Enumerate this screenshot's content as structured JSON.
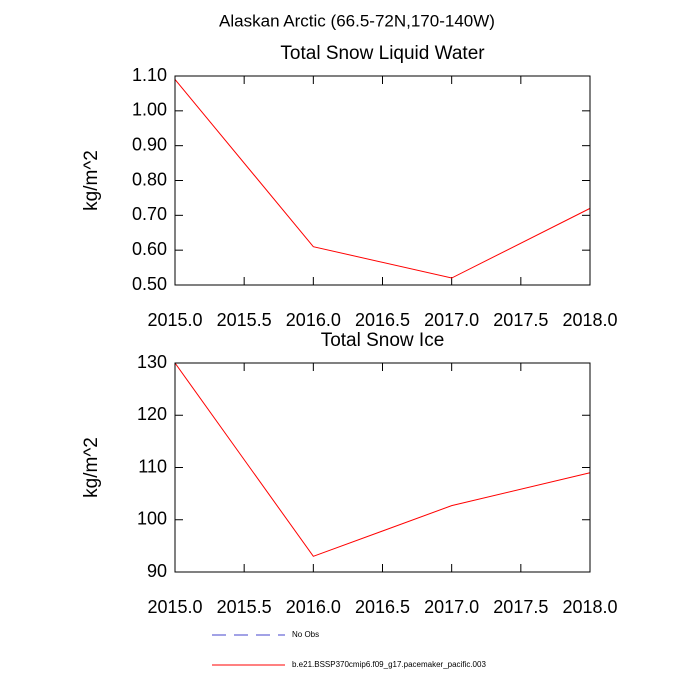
{
  "title": "Alaskan Arctic (66.5-72N,170-140W)",
  "chart_data": [
    {
      "type": "line",
      "title": "Total Snow Liquid Water",
      "ylabel": "kg/m^2",
      "x": [
        2015,
        2016,
        2017,
        2018
      ],
      "series": [
        {
          "color": "#ff0000",
          "values": [
            1.09,
            0.61,
            0.52,
            0.72
          ]
        }
      ],
      "xlim": [
        2015,
        2018
      ],
      "xticks": [
        {
          "value": 2015,
          "label": "2015.0"
        },
        {
          "value": 2015.5,
          "label": "2015.5"
        },
        {
          "value": 2016,
          "label": "2016.0"
        },
        {
          "value": 2016.5,
          "label": "2016.5"
        },
        {
          "value": 2017,
          "label": "2017.0"
        },
        {
          "value": 2017.5,
          "label": "2017.5"
        },
        {
          "value": 2018,
          "label": "2018.0"
        }
      ],
      "ylim": [
        0.5,
        1.1
      ],
      "yticks": [
        {
          "value": 0.5,
          "label": "0.50"
        },
        {
          "value": 0.6,
          "label": "0.60"
        },
        {
          "value": 0.7,
          "label": "0.70"
        },
        {
          "value": 0.8,
          "label": "0.80"
        },
        {
          "value": 0.9,
          "label": "0.90"
        },
        {
          "value": 1.0,
          "label": "1.00"
        },
        {
          "value": 1.1,
          "label": "1.10"
        }
      ]
    },
    {
      "type": "line",
      "title": "Total Snow Ice",
      "ylabel": "kg/m^2",
      "x": [
        2015,
        2016,
        2017,
        2018
      ],
      "series": [
        {
          "color": "#ff0000",
          "values": [
            130,
            93,
            102.7,
            109
          ]
        }
      ],
      "xlim": [
        2015,
        2018
      ],
      "xticks": [
        {
          "value": 2015,
          "label": "2015.0"
        },
        {
          "value": 2015.5,
          "label": "2015.5"
        },
        {
          "value": 2016,
          "label": "2016.0"
        },
        {
          "value": 2016.5,
          "label": "2016.5"
        },
        {
          "value": 2017,
          "label": "2017.0"
        },
        {
          "value": 2017.5,
          "label": "2017.5"
        },
        {
          "value": 2018,
          "label": "2018.0"
        }
      ],
      "ylim": [
        90,
        130
      ],
      "yticks": [
        90,
        100,
        110,
        120,
        130
      ]
    }
  ],
  "legend": [
    {
      "name": "No Obs",
      "color": "#4444cc",
      "dashed": true
    },
    {
      "name": "b.e21.BSSP370cmip6.f09_g17.pacemaker_pacific.003",
      "color": "#ff0000",
      "dashed": false
    }
  ]
}
